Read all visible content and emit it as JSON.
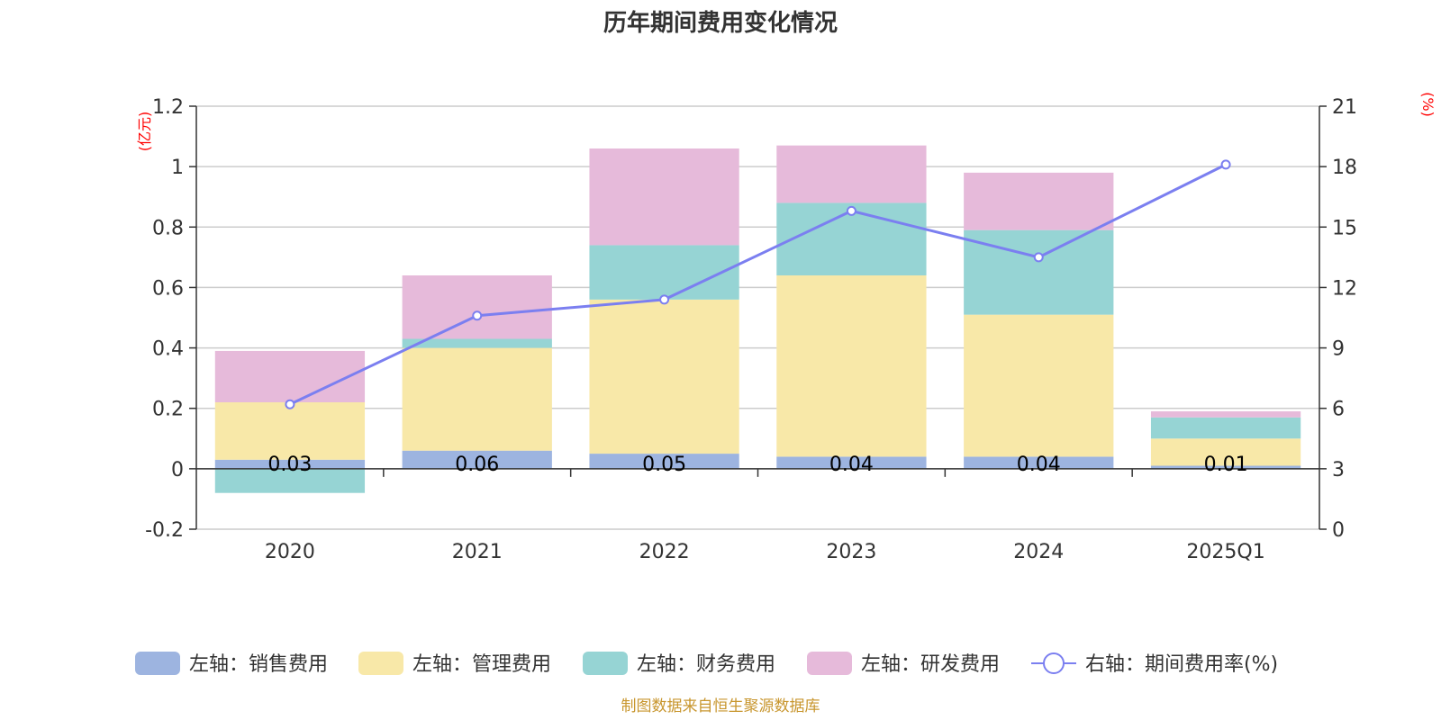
{
  "chart_data": {
    "type": "bar",
    "title": "历年期间费用变化情况",
    "categories": [
      "2020",
      "2021",
      "2022",
      "2023",
      "2024",
      "2025Q1"
    ],
    "left_axis": {
      "unit_label": "(亿元)",
      "ylim": [
        -0.2,
        1.2
      ],
      "ticks": [
        -0.2,
        0,
        0.2,
        0.4,
        0.6,
        0.8,
        1,
        1.2
      ]
    },
    "right_axis": {
      "unit_label": "(%)",
      "ylim": [
        0,
        21
      ],
      "ticks": [
        0,
        3,
        6,
        9,
        12,
        15,
        18,
        21
      ]
    },
    "series": [
      {
        "name": "左轴：销售费用",
        "kind": "bar",
        "axis": "left",
        "color": "#9db4e0",
        "values": [
          0.03,
          0.06,
          0.05,
          0.04,
          0.04,
          0.01
        ]
      },
      {
        "name": "左轴：管理费用",
        "kind": "bar",
        "axis": "left",
        "color": "#f8e8a8",
        "values": [
          0.19,
          0.34,
          0.51,
          0.6,
          0.47,
          0.09
        ]
      },
      {
        "name": "左轴：财务费用",
        "kind": "bar",
        "axis": "left",
        "color": "#96d4d4",
        "values": [
          -0.08,
          0.03,
          0.18,
          0.24,
          0.28,
          0.07
        ]
      },
      {
        "name": "左轴：研发费用",
        "kind": "bar",
        "axis": "left",
        "color": "#e6bada",
        "values": [
          0.17,
          0.21,
          0.32,
          0.19,
          0.19,
          0.02
        ]
      },
      {
        "name": "右轴：期间费用率(%)",
        "kind": "line",
        "axis": "right",
        "color": "#7b7ff0",
        "values": [
          6.2,
          10.6,
          11.4,
          15.8,
          13.5,
          18.1
        ]
      }
    ],
    "bar_labels": [
      "0.03",
      "0.06",
      "0.05",
      "0.04",
      "0.04",
      "0.01"
    ],
    "legend_position": "bottom",
    "grid": true
  },
  "source_text": "制图数据来自恒生聚源数据库"
}
